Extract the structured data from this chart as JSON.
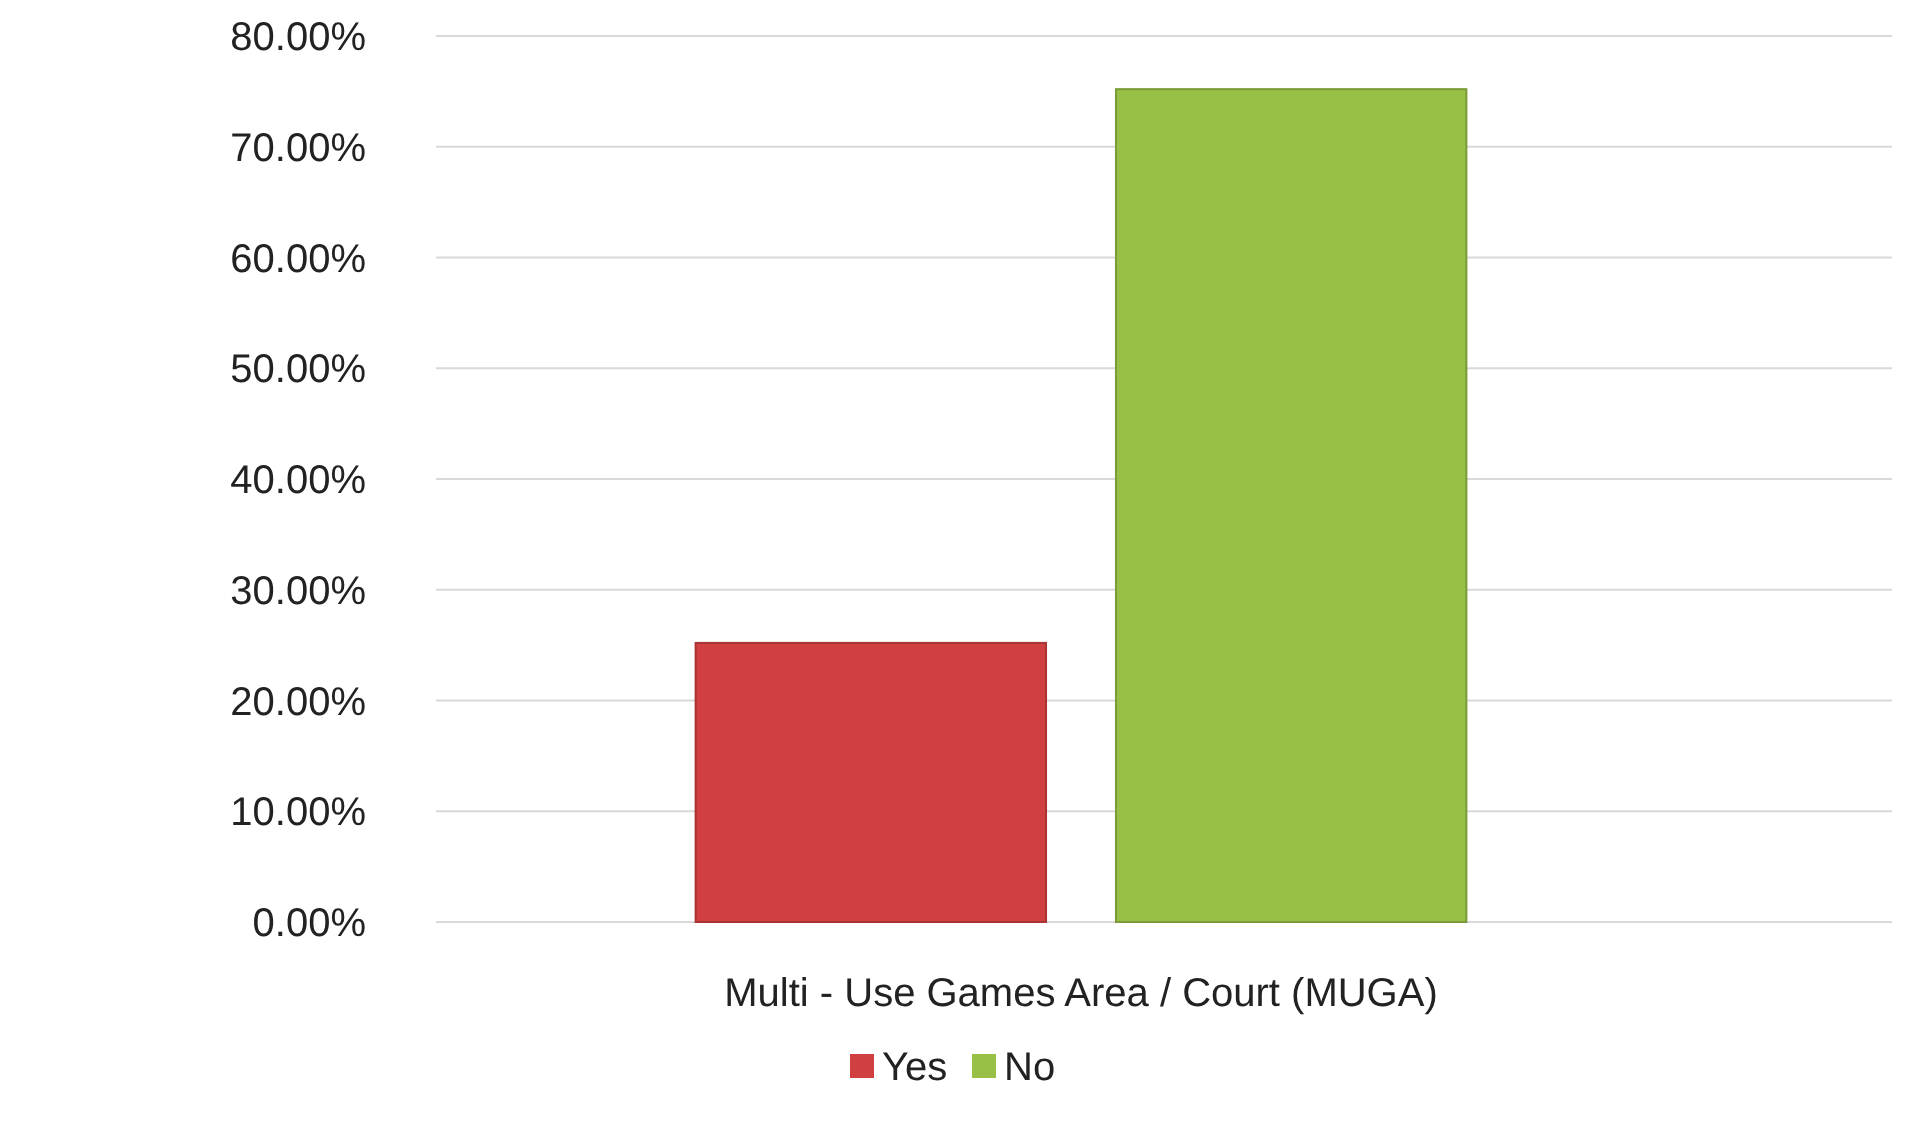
{
  "chart_data": {
    "type": "bar",
    "categories": [
      "Multi - Use Games Area / Court (MUGA)"
    ],
    "series": [
      {
        "name": "Yes",
        "color": "#d04040",
        "values": [
          25.2
        ]
      },
      {
        "name": "No",
        "color": "#98c046",
        "values": [
          75.2
        ]
      }
    ],
    "ylim": [
      0,
      80
    ],
    "yticks": [
      {
        "value": 0,
        "label": "0.00%"
      },
      {
        "value": 10,
        "label": "10.00%"
      },
      {
        "value": 20,
        "label": "20.00%"
      },
      {
        "value": 30,
        "label": "30.00%"
      },
      {
        "value": 40,
        "label": "40.00%"
      },
      {
        "value": 50,
        "label": "50.00%"
      },
      {
        "value": 60,
        "label": "60.00%"
      },
      {
        "value": 70,
        "label": "70.00%"
      },
      {
        "value": 80,
        "label": "80.00%"
      }
    ],
    "grid": true,
    "legend": "bottom"
  }
}
